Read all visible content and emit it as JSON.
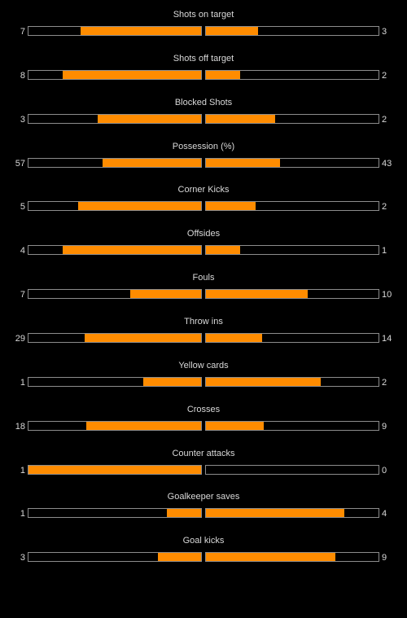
{
  "colors": {
    "background": "#000000",
    "text": "#d9d9d9",
    "bar_fill": "#ff8c00",
    "bar_border": "#8c8c8c"
  },
  "stats": [
    {
      "label": "Shots on target",
      "home": "7",
      "away": "3",
      "home_fill": 0.7,
      "away_fill": 0.3
    },
    {
      "label": "Shots off target",
      "home": "8",
      "away": "2",
      "home_fill": 0.8,
      "away_fill": 0.2
    },
    {
      "label": "Blocked Shots",
      "home": "3",
      "away": "2",
      "home_fill": 0.6,
      "away_fill": 0.4
    },
    {
      "label": "Possession (%)",
      "home": "57",
      "away": "43",
      "home_fill": 0.57,
      "away_fill": 0.43
    },
    {
      "label": "Corner Kicks",
      "home": "5",
      "away": "2",
      "home_fill": 0.714,
      "away_fill": 0.286
    },
    {
      "label": "Offsides",
      "home": "4",
      "away": "1",
      "home_fill": 0.8,
      "away_fill": 0.2
    },
    {
      "label": "Fouls",
      "home": "7",
      "away": "10",
      "home_fill": 0.412,
      "away_fill": 0.588
    },
    {
      "label": "Throw ins",
      "home": "29",
      "away": "14",
      "home_fill": 0.674,
      "away_fill": 0.326
    },
    {
      "label": "Yellow cards",
      "home": "1",
      "away": "2",
      "home_fill": 0.333,
      "away_fill": 0.667
    },
    {
      "label": "Crosses",
      "home": "18",
      "away": "9",
      "home_fill": 0.667,
      "away_fill": 0.333
    },
    {
      "label": "Counter attacks",
      "home": "1",
      "away": "0",
      "home_fill": 1.0,
      "away_fill": 0.0
    },
    {
      "label": "Goalkeeper saves",
      "home": "1",
      "away": "4",
      "home_fill": 0.2,
      "away_fill": 0.8
    },
    {
      "label": "Goal kicks",
      "home": "3",
      "away": "9",
      "home_fill": 0.25,
      "away_fill": 0.75
    }
  ]
}
